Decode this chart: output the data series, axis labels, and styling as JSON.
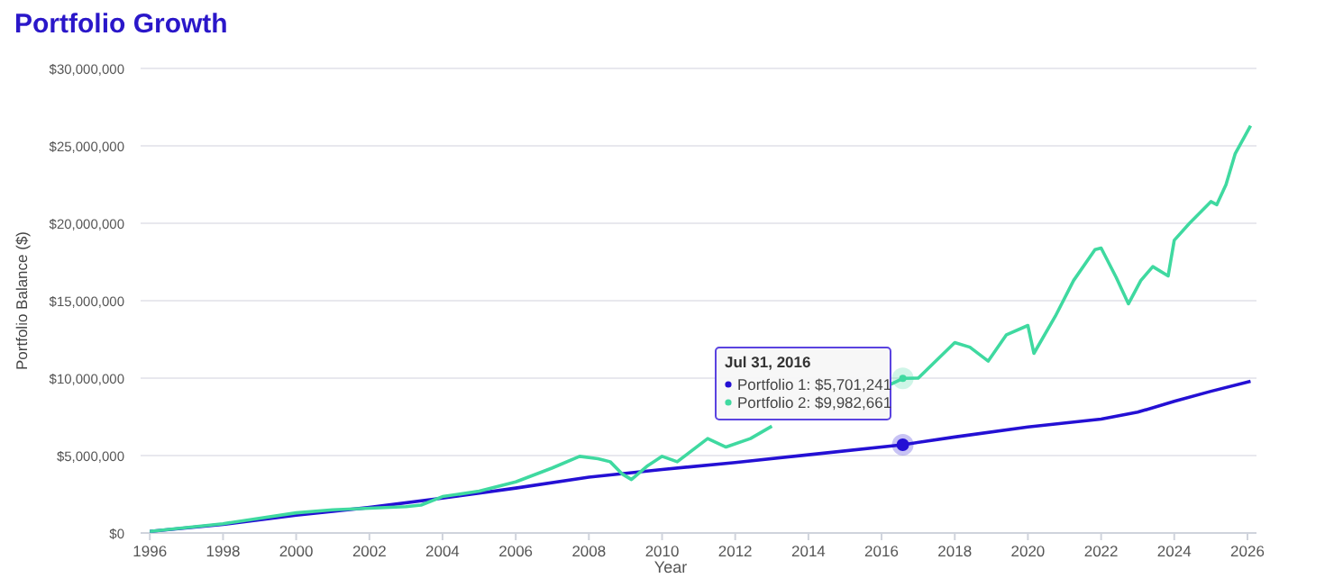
{
  "chart_data": {
    "type": "line",
    "title": "Portfolio Growth",
    "xlabel": "Year",
    "ylabel": "Portfolio Balance ($)",
    "xlim": [
      "1995-10",
      "2026-04"
    ],
    "xticks": [
      "1996",
      "1998",
      "2000",
      "2002",
      "2004",
      "2006",
      "2008",
      "2010",
      "2012",
      "2014",
      "2016",
      "2018",
      "2020",
      "2022",
      "2024",
      "2026"
    ],
    "ylim": [
      0,
      30000000
    ],
    "yticks": [
      {
        "value": 0,
        "label": "$0"
      },
      {
        "value": 5000000,
        "label": "$5,000,000"
      },
      {
        "value": 10000000,
        "label": "$10,000,000"
      },
      {
        "value": 15000000,
        "label": "$15,000,000"
      },
      {
        "value": 20000000,
        "label": "$20,000,000"
      },
      {
        "value": 25000000,
        "label": "$25,000,000"
      },
      {
        "value": 30000000,
        "label": "$30,000,000"
      }
    ],
    "grid": "y",
    "legend": "center",
    "marker": "none",
    "line_style": "solid",
    "annotations": [
      "Jul 31, 2016",
      ": $5,701,241",
      ": $9,982,661"
    ],
    "series": [
      {
        "name": "Portfolio 1",
        "color": "#2410d4",
        "x": [
          "1996-01",
          "1998-01",
          "2000-01",
          "2002-01",
          "2004-01",
          "2006-01",
          "2008-01",
          "2010-01",
          "2012-01",
          "2014-01",
          "2016-07-31",
          "2018-01",
          "2020-01",
          "2022-01",
          "2023-01",
          "2024-01",
          "2025-01",
          "2026-02"
        ],
        "values": [
          100000,
          550000,
          1150000,
          1650000,
          2250000,
          2900000,
          3600000,
          4100000,
          4550000,
          5050000,
          5701241,
          6200000,
          6850000,
          7350000,
          7800000,
          8500000,
          9150000,
          9800000
        ]
      },
      {
        "name": "Portfolio 2",
        "color": "#3fd9a0",
        "x": [
          "1996-01",
          "1998-01",
          "2000-01",
          "2001-01",
          "2002-01",
          "2003-01",
          "2003-06",
          "2004-01",
          "2005-01",
          "2006-01",
          "2007-01",
          "2007-10",
          "2008-04",
          "2008-08",
          "2008-12",
          "2009-03",
          "2009-08",
          "2010-01",
          "2010-06",
          "2011-04",
          "2011-10",
          "2012-06",
          "2013-01",
          "2013-10",
          "2014-06",
          "2016-04",
          "2016-07-31",
          "2017-01",
          "2018-01",
          "2018-06",
          "2018-12",
          "2019-06",
          "2020-01",
          "2020-03",
          "2020-10",
          "2021-04",
          "2021-11",
          "2022-01",
          "2022-06",
          "2022-10",
          "2023-02",
          "2023-06",
          "2023-11",
          "2024-01",
          "2024-06",
          "2025-01",
          "2025-03",
          "2025-06",
          "2025-09",
          "2026-02"
        ],
        "values": [
          100000,
          600000,
          1300000,
          1500000,
          1600000,
          1700000,
          1800000,
          2350000,
          2700000,
          3300000,
          4200000,
          4950000,
          4800000,
          4600000,
          3800000,
          3450000,
          4300000,
          4950000,
          4600000,
          6100000,
          5550000,
          6100000,
          6900000,
          null,
          null,
          9600000,
          9982661,
          10000000,
          12300000,
          12000000,
          11100000,
          12800000,
          13400000,
          11600000,
          14000000,
          16300000,
          18300000,
          18400000,
          16500000,
          14800000,
          16300000,
          17200000,
          16600000,
          18900000,
          20000000,
          21400000,
          21200000,
          22500000,
          24500000,
          26300000
        ]
      }
    ]
  }
}
